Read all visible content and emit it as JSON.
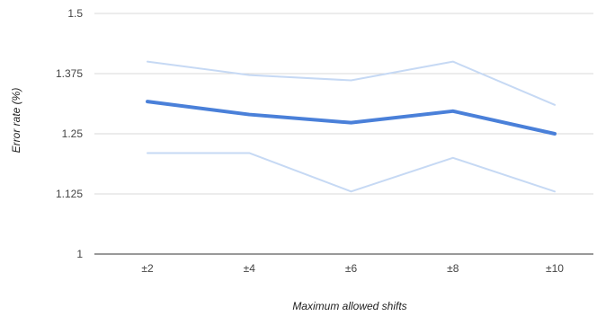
{
  "chart_data": {
    "type": "line",
    "title": "",
    "xlabel": "Maximum allowed shifts",
    "ylabel": "Error rate (%)",
    "categories": [
      "±2",
      "±4",
      "±6",
      "±8",
      "±10"
    ],
    "y_ticks": [
      "1",
      "1.125",
      "1.25",
      "1.375",
      "1.5"
    ],
    "ylim": [
      1,
      1.5
    ],
    "grid": true,
    "legend": "none",
    "series": [
      {
        "values": [
          1.4,
          1.372,
          1.361,
          1.4,
          1.31
        ],
        "color": "#c6d9f4",
        "role": "upper-bound"
      },
      {
        "values": [
          1.317,
          1.29,
          1.273,
          1.297,
          1.25
        ],
        "color": "#4a80d9",
        "role": "mean"
      },
      {
        "values": [
          1.21,
          1.21,
          1.13,
          1.2,
          1.13
        ],
        "color": "#c6d9f4",
        "role": "lower-bound"
      }
    ]
  }
}
